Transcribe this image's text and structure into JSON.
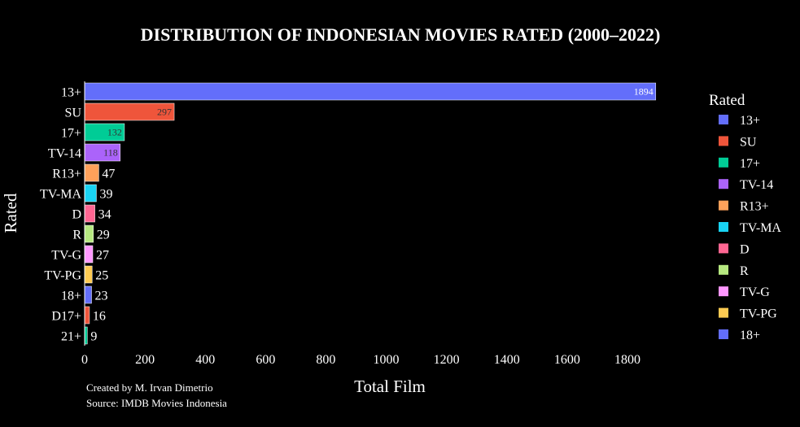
{
  "chart_data": {
    "type": "bar",
    "orientation": "horizontal",
    "title": "DISTRIBUTION OF INDONESIAN MOVIES RATED (2000–2022)",
    "xlabel": "Total Film",
    "ylabel": "Rated",
    "xlim": [
      0,
      1900
    ],
    "xticks": [
      "0",
      "200",
      "400",
      "600",
      "800",
      "1000",
      "1200",
      "1400",
      "1600",
      "1800"
    ],
    "xtick_values": [
      0,
      200,
      400,
      600,
      800,
      1000,
      1200,
      1400,
      1600,
      1800
    ],
    "categories": [
      "13+",
      "SU",
      "17+",
      "TV-14",
      "R13+",
      "TV-MA",
      "D",
      "R",
      "TV-G",
      "TV-PG",
      "18+",
      "D17+",
      "21+"
    ],
    "values": [
      1894,
      297,
      132,
      118,
      47,
      39,
      34,
      29,
      27,
      25,
      23,
      16,
      9
    ],
    "value_labels": [
      "1894",
      "297",
      "132",
      "118",
      "47",
      "39",
      "34",
      "29",
      "27",
      "25",
      "23",
      "16",
      "9"
    ],
    "colors": [
      "#636efa",
      "#EF553B",
      "#00cc96",
      "#ab63fa",
      "#FFA15A",
      "#19d3f3",
      "#FF6692",
      "#B6E880",
      "#FF97FF",
      "#FECB52",
      "#636efa",
      "#EF553B",
      "#00cc96"
    ],
    "legend": {
      "title": "Rated",
      "placement": "right",
      "entries": [
        "13+",
        "SU",
        "17+",
        "TV-14",
        "R13+",
        "TV-MA",
        "D",
        "R",
        "TV-G",
        "TV-PG",
        "18+"
      ],
      "colors": [
        "#636efa",
        "#EF553B",
        "#00cc96",
        "#ab63fa",
        "#FFA15A",
        "#19d3f3",
        "#FF6692",
        "#B6E880",
        "#FF97FF",
        "#FECB52",
        "#636efa"
      ]
    },
    "grid": false,
    "annotations": [
      "Created by M. Irvan Dimetrio",
      "Source: IMDB Movies Indonesia"
    ]
  }
}
